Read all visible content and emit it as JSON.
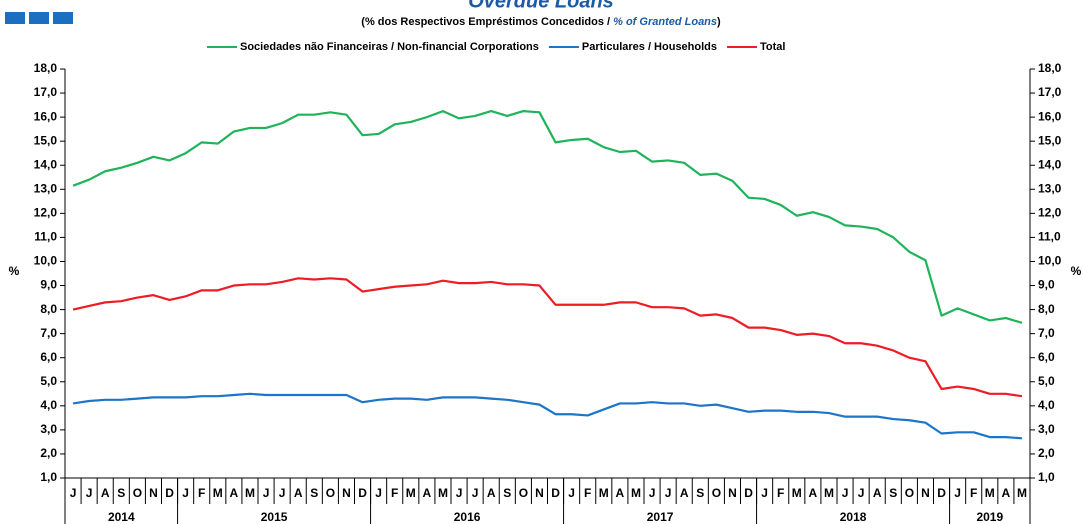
{
  "chart_data": {
    "type": "line",
    "title": "Overdue Loans",
    "subtitle": [
      "(% dos Respectivos  Empréstimos Concedidos / ",
      "% of Granted Loans",
      ")"
    ],
    "y_label": "%",
    "y2_label": "%",
    "categories": [
      "J",
      "J",
      "A",
      "S",
      "O",
      "N",
      "D",
      "J",
      "F",
      "M",
      "A",
      "M",
      "J",
      "J",
      "A",
      "S",
      "O",
      "N",
      "D",
      "J",
      "F",
      "M",
      "A",
      "M",
      "J",
      "J",
      "A",
      "S",
      "O",
      "N",
      "D",
      "J",
      "F",
      "M",
      "A",
      "M",
      "J",
      "J",
      "A",
      "S",
      "O",
      "N",
      "D",
      "J",
      "F",
      "M",
      "A",
      "M",
      "J",
      "J",
      "A",
      "S",
      "O",
      "N",
      "D",
      "J",
      "F",
      "M",
      "A",
      "M"
    ],
    "year_groups": [
      {
        "label": "2014",
        "months": 7
      },
      {
        "label": "2015",
        "months": 12
      },
      {
        "label": "2016",
        "months": 12
      },
      {
        "label": "2017",
        "months": 12
      },
      {
        "label": "2018",
        "months": 12
      },
      {
        "label": "2019",
        "months": 5
      }
    ],
    "series": [
      {
        "name": "Sociedades não Financeiras / Non-financial Corporations",
        "color": "#1fb35a",
        "values": [
          13.15,
          13.4,
          13.75,
          13.9,
          14.1,
          14.35,
          14.2,
          14.5,
          14.95,
          14.9,
          15.4,
          15.55,
          15.55,
          15.75,
          16.1,
          16.1,
          16.2,
          16.1,
          15.25,
          15.3,
          15.7,
          15.8,
          16.0,
          16.25,
          15.95,
          16.05,
          16.25,
          16.05,
          16.25,
          16.2,
          14.95,
          15.05,
          15.1,
          14.75,
          14.55,
          14.6,
          14.15,
          14.2,
          14.1,
          13.6,
          13.65,
          13.35,
          12.65,
          12.6,
          12.35,
          11.9,
          12.05,
          11.85,
          11.5,
          11.45,
          11.35,
          11.0,
          10.4,
          10.05,
          7.75,
          8.05,
          7.8,
          7.55,
          7.65,
          7.45
        ]
      },
      {
        "name": "Particulares / Households",
        "color": "#1c75c8",
        "values": [
          4.1,
          4.2,
          4.25,
          4.25,
          4.3,
          4.35,
          4.35,
          4.35,
          4.4,
          4.4,
          4.45,
          4.5,
          4.45,
          4.45,
          4.45,
          4.45,
          4.45,
          4.45,
          4.15,
          4.25,
          4.3,
          4.3,
          4.25,
          4.35,
          4.35,
          4.35,
          4.3,
          4.25,
          4.15,
          4.05,
          3.65,
          3.65,
          3.6,
          3.85,
          4.1,
          4.1,
          4.15,
          4.1,
          4.1,
          4.0,
          4.05,
          3.9,
          3.75,
          3.8,
          3.8,
          3.75,
          3.75,
          3.7,
          3.55,
          3.55,
          3.55,
          3.45,
          3.4,
          3.3,
          2.85,
          2.9,
          2.9,
          2.7,
          2.7,
          2.65
        ]
      },
      {
        "name": "Total",
        "color": "#ee1c25",
        "values": [
          8.0,
          8.15,
          8.3,
          8.35,
          8.5,
          8.6,
          8.4,
          8.55,
          8.8,
          8.8,
          9.0,
          9.05,
          9.05,
          9.15,
          9.3,
          9.25,
          9.3,
          9.25,
          8.75,
          8.85,
          8.95,
          9.0,
          9.05,
          9.2,
          9.1,
          9.1,
          9.15,
          9.05,
          9.05,
          9.0,
          8.2,
          8.2,
          8.2,
          8.2,
          8.3,
          8.3,
          8.1,
          8.1,
          8.05,
          7.75,
          7.8,
          7.65,
          7.25,
          7.25,
          7.15,
          6.95,
          7.0,
          6.9,
          6.6,
          6.6,
          6.5,
          6.3,
          6.0,
          5.85,
          4.7,
          4.8,
          4.7,
          4.5,
          4.5,
          4.4
        ]
      }
    ],
    "ylim": [
      1,
      18
    ],
    "yticks": [
      {
        "value": 1,
        "label": "1,0"
      },
      {
        "value": 2,
        "label": "2,0"
      },
      {
        "value": 3,
        "label": "3,0"
      },
      {
        "value": 4,
        "label": "4,0"
      },
      {
        "value": 5,
        "label": "5,0"
      },
      {
        "value": 6,
        "label": "6,0"
      },
      {
        "value": 7,
        "label": "7,0"
      },
      {
        "value": 8,
        "label": "8,0"
      },
      {
        "value": 9,
        "label": "9,0"
      },
      {
        "value": 10,
        "label": "10,0"
      },
      {
        "value": 11,
        "label": "11,0"
      },
      {
        "value": 12,
        "label": "12,0"
      },
      {
        "value": 13,
        "label": "13,0"
      },
      {
        "value": 14,
        "label": "14,0"
      },
      {
        "value": 15,
        "label": "15,0"
      },
      {
        "value": 16,
        "label": "16,0"
      },
      {
        "value": 17,
        "label": "17,0"
      },
      {
        "value": 18,
        "label": "18,0"
      }
    ],
    "y2lim": [
      1,
      18
    ],
    "y2ticks": [
      {
        "value": 1,
        "label": "1,0"
      },
      {
        "value": 2,
        "label": "2,0"
      },
      {
        "value": 3,
        "label": "3,0"
      },
      {
        "value": 4,
        "label": "4,0"
      },
      {
        "value": 5,
        "label": "5,0"
      },
      {
        "value": 6,
        "label": "6,0"
      },
      {
        "value": 7,
        "label": "7,0"
      },
      {
        "value": 8,
        "label": "8,0"
      },
      {
        "value": 9,
        "label": "9,0"
      },
      {
        "value": 10,
        "label": "10,0"
      },
      {
        "value": 11,
        "label": "11,0"
      },
      {
        "value": 12,
        "label": "12,0"
      },
      {
        "value": 13,
        "label": "13,0"
      },
      {
        "value": 14,
        "label": "14,0"
      },
      {
        "value": 15,
        "label": "15,0"
      },
      {
        "value": 16,
        "label": "16,0"
      },
      {
        "value": 17,
        "label": "17,0"
      },
      {
        "value": 18,
        "label": "18,0"
      }
    ],
    "grid": false,
    "legend": "top"
  }
}
